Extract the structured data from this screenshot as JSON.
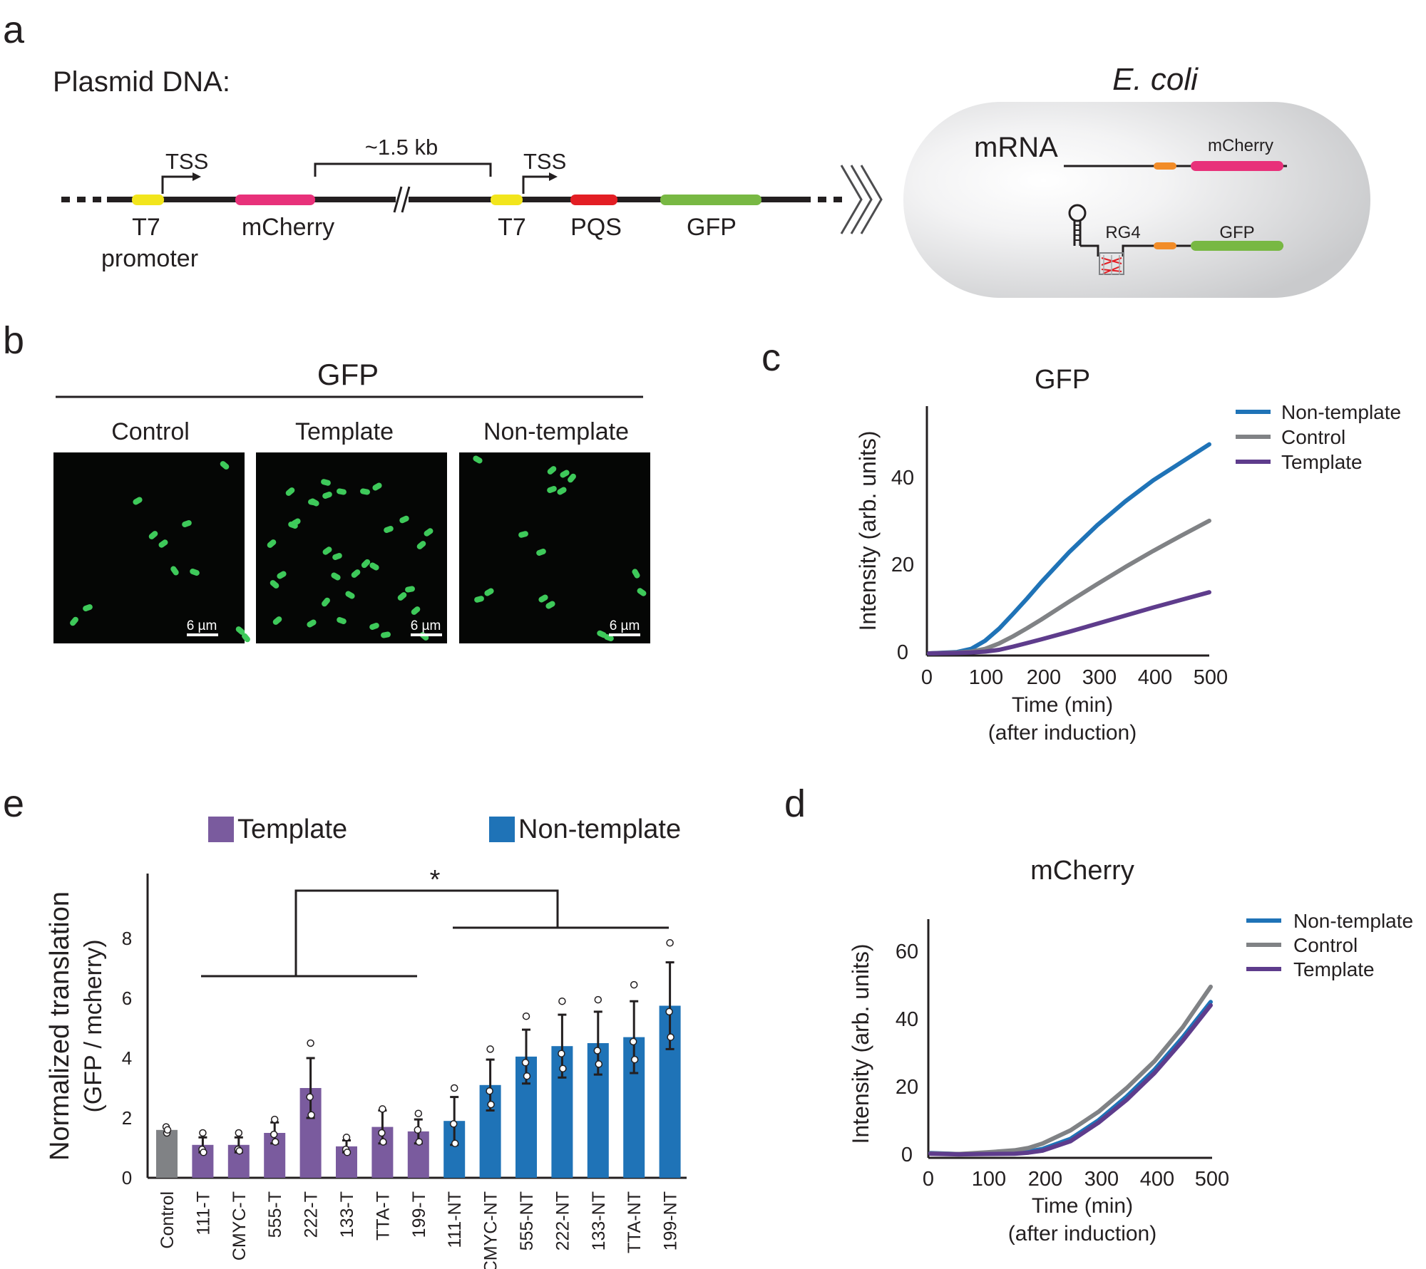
{
  "panel_labels": {
    "a": "a",
    "b": "b",
    "c": "c",
    "d": "d",
    "e": "e"
  },
  "panel_a": {
    "plasmid_label": "Plasmid DNA:",
    "tss_left": "TSS",
    "tss_right": "TSS",
    "span_label": "~1.5 kb",
    "t7_promoter_line1": "T7",
    "t7_promoter_line2": "promoter",
    "mcherry_label": "mCherry",
    "t7_label": "T7",
    "pqs_label": "PQS",
    "gfp_label": "GFP",
    "ecoli_title": "E. coli",
    "mrna_label": "mRNA",
    "cell_mcherry_label": "mCherry",
    "rg4_label": "RG4",
    "cell_gfp_label": "GFP",
    "colors": {
      "t7": "#f2e51c",
      "mcherry": "#e8317a",
      "pqs": "#e31e24",
      "gfp": "#78b843",
      "rbs": "#f28c28",
      "cell": "#d2d3d5"
    }
  },
  "panel_b": {
    "title": "GFP",
    "images": [
      {
        "label": "Control",
        "scale": "6 µm"
      },
      {
        "label": "Template",
        "scale": "6 µm"
      },
      {
        "label": "Non-template",
        "scale": "6 µm"
      }
    ]
  },
  "chart_data": [
    {
      "panel": "c",
      "type": "line",
      "title": "GFP",
      "xlabel": "Time (min)",
      "xlabel2": "(after induction)",
      "ylabel": "Intensity (arb. units)",
      "xlim": [
        0,
        500
      ],
      "ylim": [
        0,
        55
      ],
      "xticks": [
        "0",
        "100",
        "200",
        "300",
        "400",
        "500"
      ],
      "yticks": [
        "0",
        "20",
        "40"
      ],
      "legend": [
        "Non-template",
        "Control",
        "Template"
      ],
      "x": [
        0,
        50,
        75,
        100,
        125,
        150,
        175,
        200,
        250,
        300,
        350,
        400,
        450,
        500
      ],
      "series": [
        {
          "name": "Non-template",
          "color": "#1f73b7",
          "values": [
            0,
            0.3,
            1.0,
            2.8,
            5.5,
            8.8,
            12.2,
            15.8,
            22.5,
            28.5,
            33.8,
            38.5,
            42.5,
            46.5
          ]
        },
        {
          "name": "Control",
          "color": "#808285",
          "values": [
            0,
            0.2,
            0.4,
            1.0,
            2.2,
            3.8,
            5.6,
            7.5,
            11.5,
            15.4,
            19.2,
            22.8,
            26.2,
            29.5
          ]
        },
        {
          "name": "Template",
          "color": "#5e3c8c",
          "values": [
            0,
            0.1,
            0.2,
            0.4,
            0.8,
            1.5,
            2.3,
            3.1,
            4.8,
            6.6,
            8.4,
            10.2,
            11.9,
            13.6
          ]
        }
      ]
    },
    {
      "panel": "d",
      "type": "line",
      "title": "mCherry",
      "xlabel": "Time (min)",
      "xlabel2": "(after induction)",
      "ylabel": "Intensity (arb. units)",
      "xlim": [
        0,
        500
      ],
      "ylim": [
        0,
        70
      ],
      "xticks": [
        "0",
        "100",
        "200",
        "300",
        "400",
        "500"
      ],
      "yticks": [
        "0",
        "20",
        "40",
        "60"
      ],
      "legend": [
        "Non-template",
        "Control",
        "Template"
      ],
      "x": [
        0,
        50,
        100,
        150,
        175,
        200,
        250,
        300,
        350,
        400,
        450,
        500
      ],
      "series": [
        {
          "name": "Non-template",
          "color": "#1f73b7",
          "values": [
            0.8,
            0.5,
            0.6,
            0.8,
            1.2,
            2.0,
            5.0,
            10.5,
            17.5,
            25.5,
            35.0,
            45.5
          ]
        },
        {
          "name": "Control",
          "color": "#808285",
          "values": [
            0.7,
            0.5,
            1.0,
            1.6,
            2.3,
            3.6,
            7.5,
            13.0,
            20.0,
            28.0,
            38.0,
            50.0
          ]
        },
        {
          "name": "Template",
          "color": "#5e3c8c",
          "values": [
            0.6,
            0.4,
            0.5,
            0.6,
            0.9,
            1.5,
            4.3,
            9.8,
            16.5,
            24.5,
            34.0,
            44.5
          ]
        }
      ]
    },
    {
      "panel": "e",
      "type": "bar",
      "ylabel": "Normalized translation",
      "ylabel2": "(GFP / mcherry)",
      "ylim": [
        0,
        10
      ],
      "yticks": [
        "0",
        "2",
        "4",
        "6",
        "8"
      ],
      "legend": [
        "Template",
        "Non-template"
      ],
      "legend_colors": [
        "#7a5b9e",
        "#1f73b7"
      ],
      "significance": "*",
      "categories": [
        "Control",
        "111-T",
        "CMYC-T",
        "555-T",
        "222-T",
        "133-T",
        "TTA-T",
        "199-T",
        "111-NT",
        "CMYC-NT",
        "555-NT",
        "222-NT",
        "133-NT",
        "TTA-NT",
        "199-NT"
      ],
      "groups": [
        "control",
        "T",
        "T",
        "T",
        "T",
        "T",
        "T",
        "T",
        "NT",
        "NT",
        "NT",
        "NT",
        "NT",
        "NT",
        "NT"
      ],
      "values": [
        1.6,
        1.1,
        1.1,
        1.5,
        3.0,
        1.05,
        1.7,
        1.55,
        1.9,
        3.1,
        4.05,
        4.4,
        4.5,
        4.7,
        5.75
      ],
      "errors": [
        0,
        0.25,
        0.25,
        0.35,
        1.0,
        0.2,
        0.55,
        0.4,
        0.8,
        0.85,
        0.9,
        1.05,
        1.05,
        1.2,
        1.45
      ],
      "points": [
        [
          1.5,
          1.7,
          1.6
        ],
        [
          1.5,
          0.95,
          0.85
        ],
        [
          1.5,
          0.95,
          0.9
        ],
        [
          1.95,
          1.45,
          1.2
        ],
        [
          4.5,
          2.7,
          2.1
        ],
        [
          1.35,
          0.95,
          0.85
        ],
        [
          2.3,
          1.5,
          1.2
        ],
        [
          2.15,
          1.6,
          1.2
        ],
        [
          3.0,
          1.8,
          1.15
        ],
        [
          4.3,
          2.9,
          2.45
        ],
        [
          5.4,
          3.85,
          3.4
        ],
        [
          5.9,
          4.15,
          3.65
        ],
        [
          5.95,
          4.25,
          3.8
        ],
        [
          6.45,
          4.55,
          3.95
        ],
        [
          7.85,
          5.55,
          4.7
        ]
      ]
    }
  ]
}
